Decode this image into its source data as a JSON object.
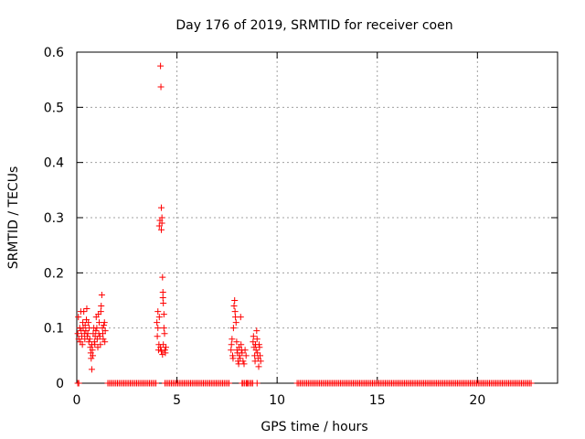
{
  "chart_data": {
    "type": "scatter",
    "title": "Day 176 of 2019, SRMTID for receiver coen",
    "xlabel": "GPS time / hours",
    "ylabel": "SRMTID / TECUs",
    "xlim": [
      0,
      24
    ],
    "ylim": [
      0,
      0.6
    ],
    "xticks": [
      0,
      5,
      10,
      15,
      20
    ],
    "yticks": [
      0,
      0.1,
      0.2,
      0.3,
      0.4,
      0.5,
      0.6
    ],
    "xtick_labels": [
      "0",
      "5",
      "10",
      "15",
      "20"
    ],
    "ytick_labels": [
      "0",
      "0.1",
      "0.2",
      "0.3",
      "0.4",
      "0.5",
      "0.6"
    ],
    "grid": true,
    "legend": "none",
    "marker": "+",
    "color": "#ff0000",
    "series": [
      {
        "points": [
          [
            0.05,
            0
          ],
          [
            0.1,
            0
          ],
          [
            0.05,
            0.09
          ],
          [
            0.08,
            0.12
          ],
          [
            0.1,
            0.08
          ],
          [
            0.15,
            0.1
          ],
          [
            0.18,
            0.075
          ],
          [
            0.2,
            0.13
          ],
          [
            0.22,
            0.095
          ],
          [
            0.25,
            0.085
          ],
          [
            0.28,
            0.07
          ],
          [
            0.3,
            0.11
          ],
          [
            0.32,
            0.1
          ],
          [
            0.35,
            0.13
          ],
          [
            0.38,
            0.09
          ],
          [
            0.4,
            0.08
          ],
          [
            0.42,
            0.105
          ],
          [
            0.45,
            0.095
          ],
          [
            0.48,
            0.115
          ],
          [
            0.5,
            0.135
          ],
          [
            0.52,
            0.085
          ],
          [
            0.55,
            0.09
          ],
          [
            0.58,
            0.11
          ],
          [
            0.6,
            0.075
          ],
          [
            0.62,
            0.1
          ],
          [
            0.65,
            0.08
          ],
          [
            0.68,
            0.065
          ],
          [
            0.7,
            0.055
          ],
          [
            0.72,
            0.045
          ],
          [
            0.75,
            0.07
          ],
          [
            0.75,
            0.025
          ],
          [
            0.78,
            0.06
          ],
          [
            0.8,
            0.05
          ],
          [
            0.82,
            0.09
          ],
          [
            0.85,
            0.1
          ],
          [
            0.88,
            0.075
          ],
          [
            0.9,
            0.07
          ],
          [
            0.92,
            0.085
          ],
          [
            0.95,
            0.095
          ],
          [
            0.97,
            0.12
          ],
          [
            1.0,
            0.1
          ],
          [
            1.02,
            0.08
          ],
          [
            1.05,
            0.065
          ],
          [
            1.08,
            0.125
          ],
          [
            1.1,
            0.09
          ],
          [
            1.12,
            0.11
          ],
          [
            1.15,
            0.085
          ],
          [
            1.18,
            0.07
          ],
          [
            1.2,
            0.13
          ],
          [
            1.22,
            0.14
          ],
          [
            1.25,
            0.16
          ],
          [
            1.28,
            0.1
          ],
          [
            1.3,
            0.09
          ],
          [
            1.32,
            0.08
          ],
          [
            1.35,
            0.105
          ],
          [
            1.38,
            0.11
          ],
          [
            1.4,
            0.075
          ],
          [
            1.42,
            0.095
          ],
          [
            4.0,
            0.11
          ],
          [
            4.02,
            0.085
          ],
          [
            4.05,
            0.13
          ],
          [
            4.08,
            0.06
          ],
          [
            4.1,
            0.07
          ],
          [
            4.12,
            0.285
          ],
          [
            4.15,
            0.295
          ],
          [
            4.18,
            0.575
          ],
          [
            4.2,
            0.537
          ],
          [
            4.22,
            0.318
          ],
          [
            4.22,
            0.278
          ],
          [
            4.25,
            0.29
          ],
          [
            4.25,
            0.3
          ],
          [
            4.28,
            0.192
          ],
          [
            4.3,
            0.165
          ],
          [
            4.3,
            0.155
          ],
          [
            4.32,
            0.145
          ],
          [
            4.35,
            0.125
          ],
          [
            4.35,
            0.1
          ],
          [
            4.38,
            0.09
          ],
          [
            4.4,
            0.06
          ],
          [
            4.42,
            0.055
          ],
          [
            4.45,
            0.065
          ],
          [
            4.18,
            0.065
          ],
          [
            4.22,
            0.058
          ],
          [
            4.28,
            0.052
          ],
          [
            4.32,
            0.07
          ],
          [
            4.05,
            0.1
          ],
          [
            4.12,
            0.12
          ],
          [
            7.7,
            0.06
          ],
          [
            7.72,
            0.07
          ],
          [
            7.75,
            0.08
          ],
          [
            7.78,
            0.05
          ],
          [
            7.8,
            0.045
          ],
          [
            7.82,
            0.1
          ],
          [
            7.85,
            0.14
          ],
          [
            7.88,
            0.15
          ],
          [
            7.9,
            0.13
          ],
          [
            7.92,
            0.12
          ],
          [
            7.95,
            0.11
          ],
          [
            7.98,
            0.075
          ],
          [
            8.0,
            0.06
          ],
          [
            8.02,
            0.055
          ],
          [
            8.05,
            0.04
          ],
          [
            8.08,
            0.035
          ],
          [
            8.1,
            0.065
          ],
          [
            8.12,
            0.05
          ],
          [
            8.15,
            0.045
          ],
          [
            8.18,
            0.12
          ],
          [
            8.2,
            0.07
          ],
          [
            8.22,
            0.06
          ],
          [
            8.25,
            0.055
          ],
          [
            8.3,
            0.04
          ],
          [
            8.35,
            0.035
          ],
          [
            8.4,
            0.06
          ],
          [
            8.45,
            0.05
          ],
          [
            8.8,
            0.075
          ],
          [
            8.82,
            0.085
          ],
          [
            8.85,
            0.065
          ],
          [
            8.88,
            0.05
          ],
          [
            8.9,
            0.04
          ],
          [
            8.92,
            0.07
          ],
          [
            8.95,
            0.06
          ],
          [
            8.98,
            0.095
          ],
          [
            9.0,
            0.08
          ],
          [
            9.02,
            0.055
          ],
          [
            9.05,
            0.045
          ],
          [
            9.08,
            0.03
          ],
          [
            9.1,
            0.07
          ],
          [
            9.12,
            0.065
          ],
          [
            9.15,
            0.05
          ],
          [
            9.18,
            0.04
          ],
          [
            8.25,
            0
          ],
          [
            8.5,
            0
          ],
          [
            8.7,
            0
          ],
          [
            9.0,
            0
          ]
        ]
      }
    ],
    "zero_segments": [
      [
        1.55,
        3.95
      ],
      [
        4.4,
        7.6
      ],
      [
        8.3,
        8.85
      ],
      [
        11.0,
        22.7
      ]
    ],
    "zero_step": 0.08
  }
}
